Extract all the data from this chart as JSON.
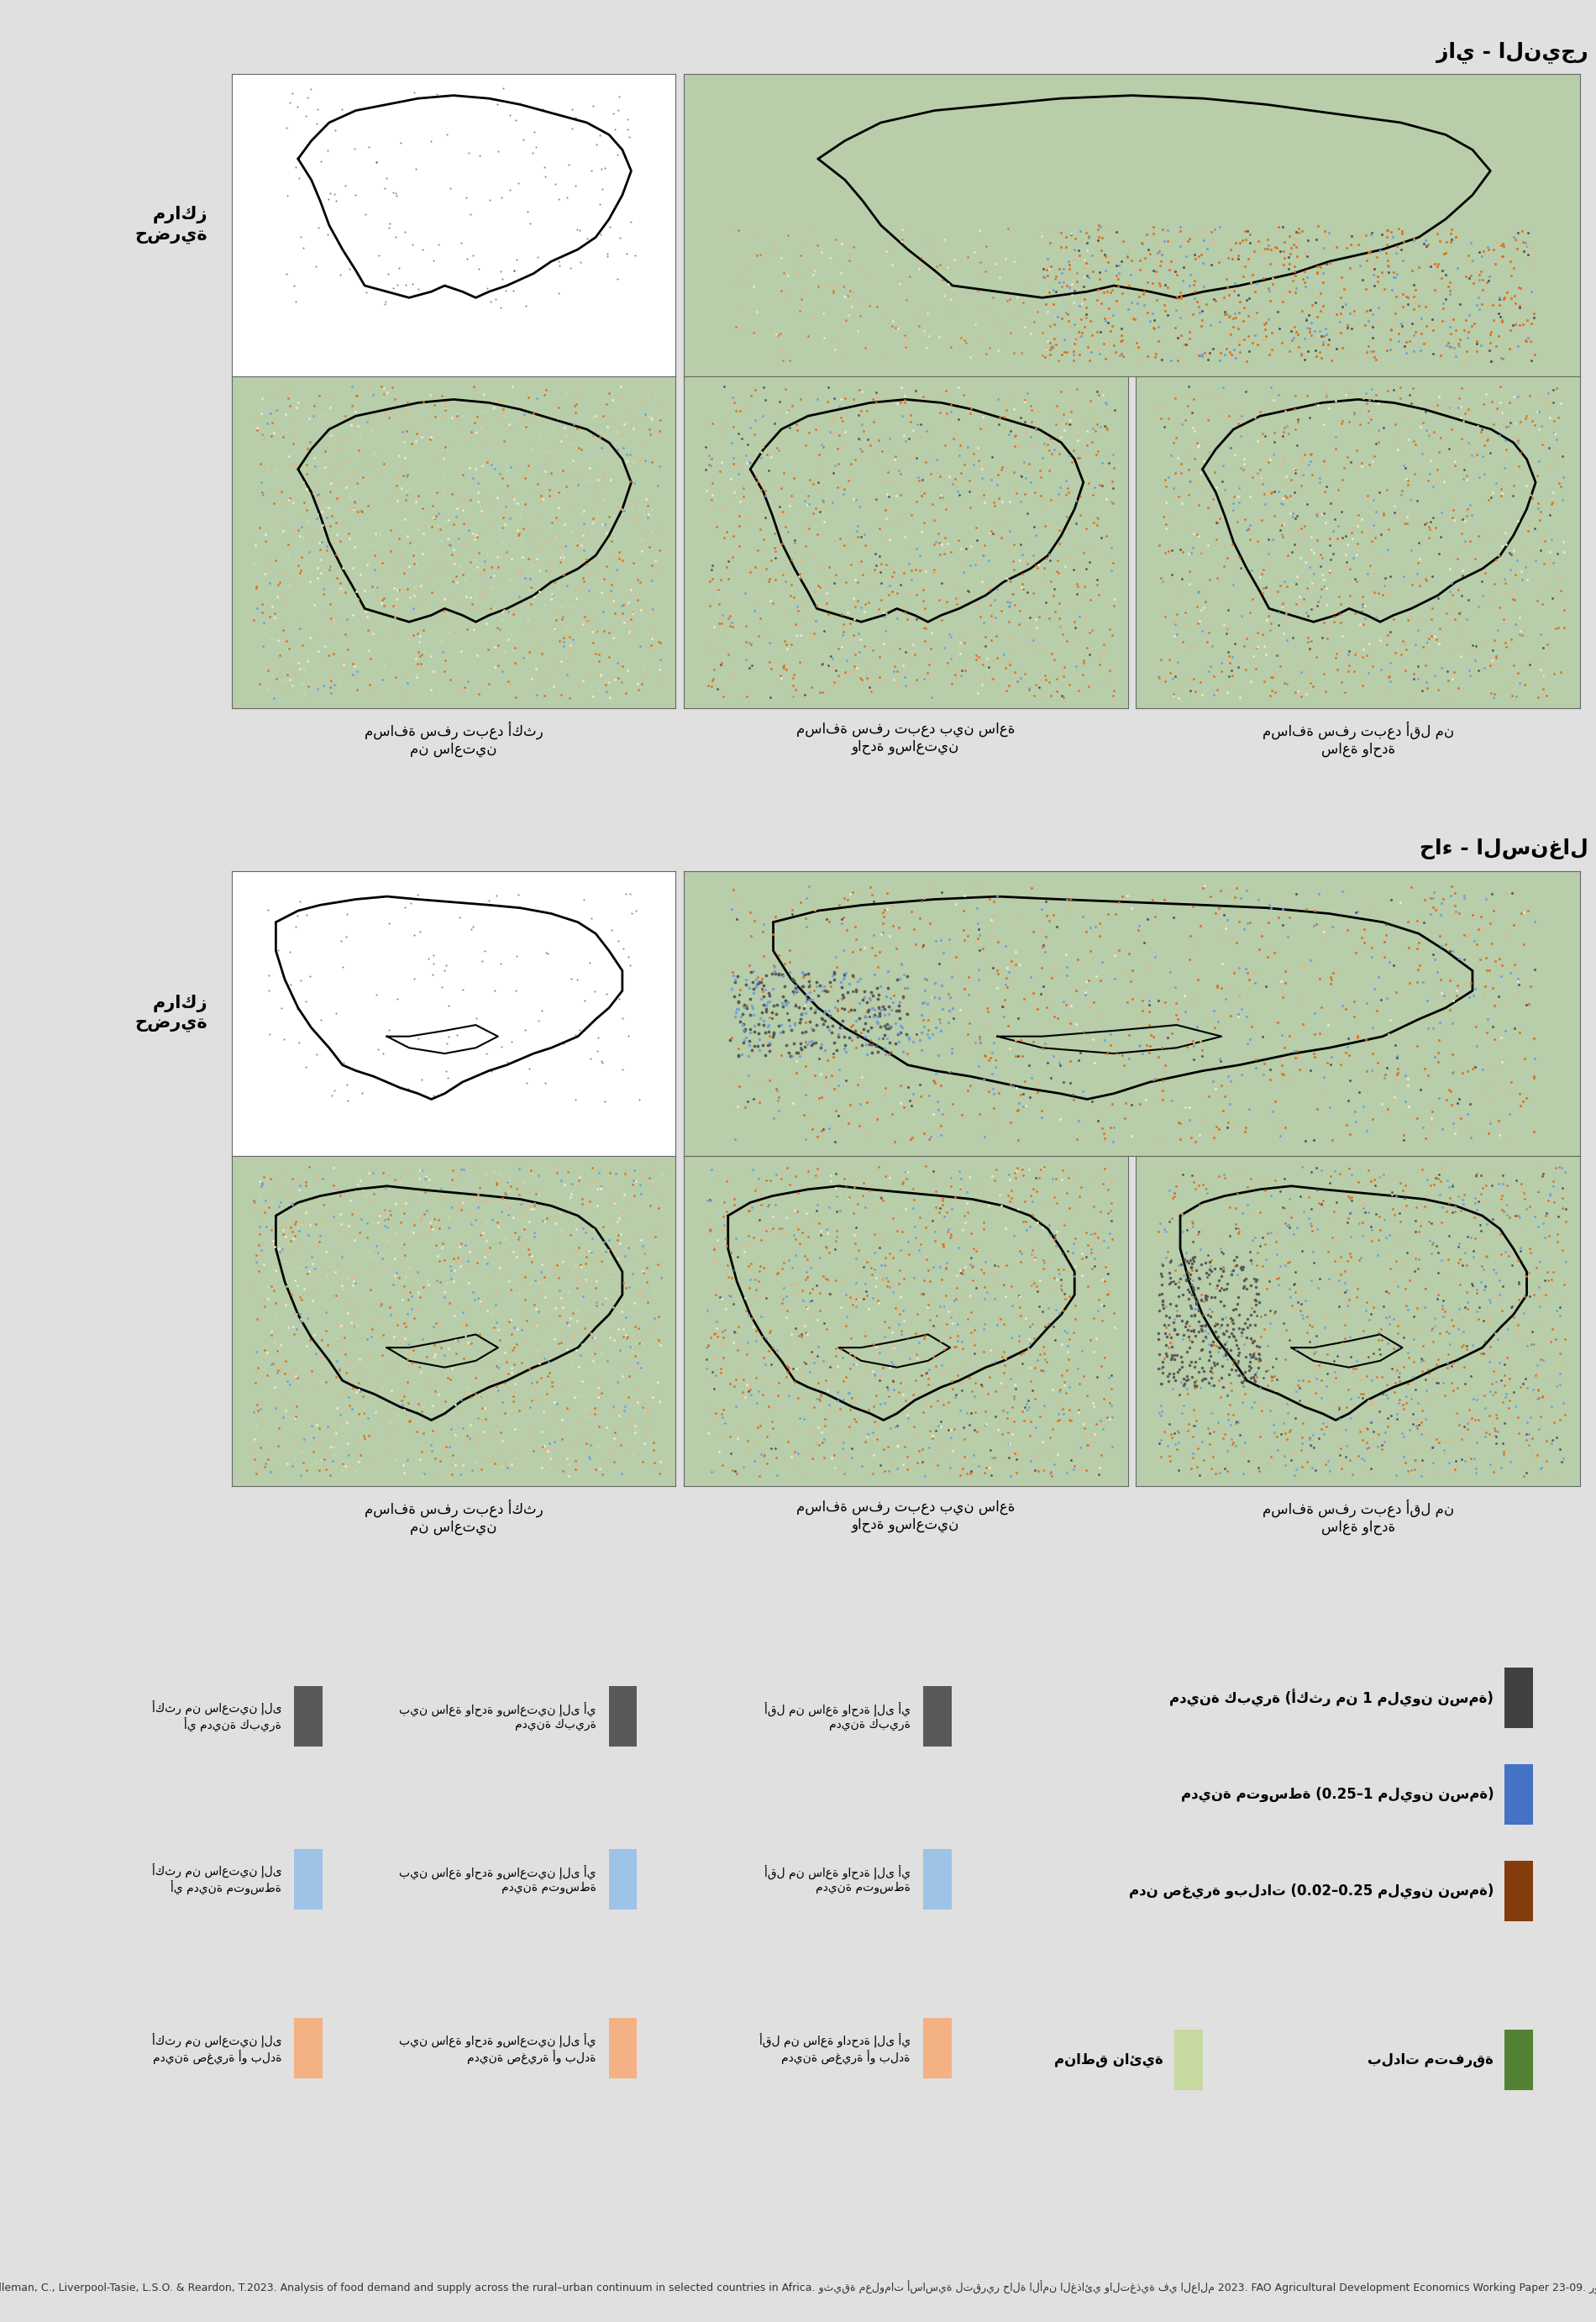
{
  "title_niger": "زاي - النيجر",
  "title_senegal": "حاء - السنغال",
  "label_urban_centers": "مراكز\nحضرية",
  "label_less_1h": "مسافة سفر تبعد أقل من\nساعة واحدة",
  "label_1_2h": "مسافة سفر تبعد بين ساعة\nواحدة وساعتين",
  "label_more_2h": "مسافة سفر تبعد أكثر\nمن ساعتين",
  "bg_color": "#e0e0e0",
  "map_bg_white": "#ffffff",
  "map_bg_green": "#b8ceaa",
  "legend_items": [
    {
      "color": "#404040",
      "label": "مدينة كبيرة (أكثر من 1 مليون نسمة)"
    },
    {
      "color": "#4472c4",
      "label": "مدينة متوسطة (0.25–1 مليون نسمة)"
    },
    {
      "color": "#843c0c",
      "label": "مدن صغيرة وبلدات (0.02–0.25 مليون نسمة)"
    },
    {
      "color": "#548235",
      "label": "بلدات متفرقة"
    },
    {
      "color": "#c6d9a0",
      "label": "مناطق نائية"
    }
  ],
  "legend_distance_gray": "#595959",
  "legend_distance_blue": "#9dc3e6",
  "legend_distance_orange": "#f4b183",
  "leg_d_labels": [
    [
      "أقل من ساعة واحدة إلى أي\nمدينة كبيرة",
      "بين ساعة واحدة وساعتين إلى أي\nمدينة كبيرة",
      "أكثر من ساعتين إلى\nأي مدينة كبيرة"
    ],
    [
      "أقل من ساعة واحدة إلى أي\nمدينة متوسطة",
      "بين ساعة واحدة وساعتين إلى أي\nمدينة متوسطة",
      "أكثر من ساعتين إلى\nأي مدينة متوسطة"
    ],
    [
      "أقل من ساعة وادحدة إلى أي\nمدينة صغيرة أو بلدة",
      "بين ساعة واحدة وساعتين إلى أي\nمدينة صغيرة أو بلدة",
      "أكثر من ساعتين إلى\nمدينة صغيرة أو بلدة"
    ]
  ],
  "source_text": "المصدر: Dolislager, M.J, Holleman, C., Liverpool-Tasie, L.S.O. & Reardon, T.2023. Analysis of food demand and supply across the rural–urban continuum in selected countries in Africa. وثيقة معلومات أساسية لتقرير حالة الأمن الغذائي والتغذية في العالم 2023. FAO Agricultural Development Economics Working Paper 23-09. روما، منظمة الأغذية والزراعة."
}
